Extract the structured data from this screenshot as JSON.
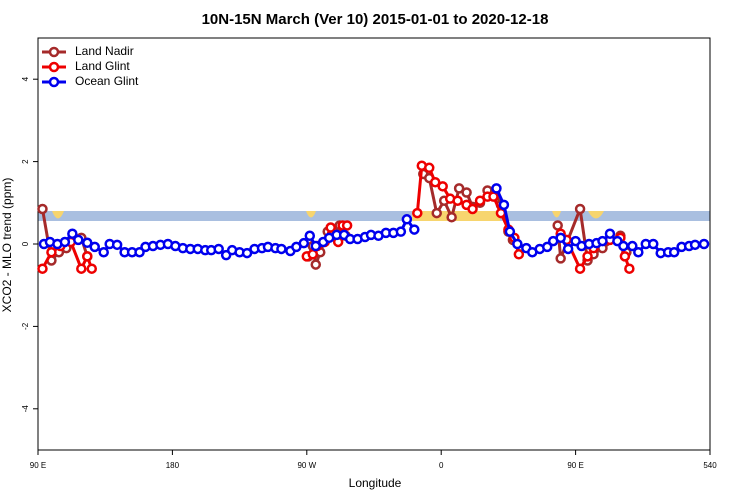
{
  "chart_data": {
    "type": "line",
    "title": "10N-15N March (Ver 10)   2015-01-01 to 2020-12-18",
    "xlabel": "Longitude",
    "ylabel": "XCO2 - MLO trend (ppm)",
    "xlim": [
      90,
      540
    ],
    "xticks": [
      {
        "value": 90,
        "label": "90 E"
      },
      180,
      {
        "value": 270,
        "label": "90 W"
      },
      {
        "value": 360,
        "label": "0"
      },
      {
        "value": 450,
        "label": "90 E"
      },
      540
    ],
    "ylim": [
      -5,
      5
    ],
    "yticks": [
      -4,
      -2,
      0,
      2,
      4
    ],
    "legend": "top-left",
    "series": [
      {
        "name": "Land Nadir",
        "color": "#a52a2a",
        "x": [
          93,
          99,
          104,
          109,
          119,
          123,
          200,
          271,
          274,
          276,
          279,
          284,
          288,
          292,
          296,
          320,
          348,
          352,
          357,
          362,
          367,
          372,
          377,
          381,
          386,
          391,
          396,
          400,
          405,
          408,
          420,
          438,
          440,
          453,
          458,
          462,
          468,
          480,
          484
        ],
        "values": [
          0.85,
          -0.4,
          -0.2,
          -0.1,
          0.15,
          -0.3,
          null,
          -0.3,
          -0.05,
          -0.5,
          -0.2,
          0.3,
          0.3,
          0.45,
          0.2,
          null,
          1.7,
          1.6,
          0.75,
          1.05,
          0.65,
          1.35,
          1.25,
          0.9,
          1.0,
          1.3,
          1.25,
          0.95,
          0.3,
          0.1,
          null,
          0.45,
          -0.35,
          0.85,
          -0.4,
          -0.25,
          -0.1,
          0.2,
          -0.2
        ]
      },
      {
        "name": "Land Glint",
        "color": "#ee0000",
        "x": [
          93,
          99,
          105,
          112,
          119,
          123,
          126,
          200,
          270,
          274,
          277,
          282,
          286,
          291,
          294,
          297,
          320,
          344,
          347,
          352,
          356,
          361,
          366,
          371,
          377,
          381,
          386,
          391,
          395,
          400,
          405,
          409,
          412,
          425,
          440,
          444,
          453,
          458,
          462,
          473,
          480,
          483,
          486
        ],
        "values": [
          -0.6,
          -0.2,
          -0.05,
          0.05,
          -0.6,
          -0.3,
          -0.6,
          null,
          -0.3,
          -0.25,
          -0.05,
          0.05,
          0.4,
          0.05,
          0.45,
          0.45,
          null,
          0.75,
          1.9,
          1.85,
          1.5,
          1.4,
          1.1,
          1.05,
          0.95,
          0.85,
          1.05,
          1.15,
          1.15,
          0.75,
          0.35,
          0.15,
          -0.25,
          null,
          0.25,
          0.1,
          -0.6,
          -0.3,
          -0.1,
          0.1,
          0.15,
          -0.3,
          -0.6
        ]
      },
      {
        "name": "Ocean Glint",
        "color": "#0000ee",
        "x": [
          94,
          98,
          103,
          108,
          113,
          117,
          123,
          128,
          134,
          138,
          143,
          148,
          153,
          158,
          162,
          167,
          172,
          177,
          182,
          187,
          192,
          197,
          202,
          206,
          211,
          216,
          220,
          225,
          230,
          235,
          240,
          244,
          249,
          253,
          259,
          263,
          268,
          272,
          276,
          281,
          285,
          290,
          295,
          299,
          304,
          309,
          313,
          318,
          323,
          328,
          333,
          337,
          342,
          370,
          397,
          402,
          406,
          411,
          417,
          421,
          426,
          431,
          435,
          440,
          445,
          450,
          454,
          459,
          464,
          468,
          473,
          478,
          482,
          488,
          492,
          497,
          502,
          507,
          512,
          516,
          521,
          526,
          530,
          536
        ],
        "values": [
          0,
          0.05,
          0,
          0.05,
          0.25,
          0.1,
          0.03,
          -0.07,
          -0.2,
          0,
          -0.02,
          -0.2,
          -0.2,
          -0.2,
          -0.07,
          -0.05,
          -0.02,
          0,
          -0.05,
          -0.1,
          -0.12,
          -0.12,
          -0.15,
          -0.15,
          -0.12,
          -0.27,
          -0.15,
          -0.2,
          -0.22,
          -0.12,
          -0.1,
          -0.07,
          -0.1,
          -0.12,
          -0.17,
          -0.07,
          0.02,
          0.2,
          -0.05,
          0.05,
          0.15,
          0.22,
          0.22,
          0.12,
          0.12,
          0.17,
          0.22,
          0.2,
          0.27,
          0.27,
          0.3,
          0.6,
          0.35,
          null,
          1.35,
          0.95,
          0.3,
          0,
          -0.1,
          -0.2,
          -0.12,
          -0.07,
          0.07,
          0.15,
          -0.12,
          0.07,
          -0.05,
          0,
          0.02,
          0.07,
          0.25,
          0.07,
          -0.05,
          -0.05,
          -0.2,
          0,
          0,
          -0.22,
          -0.2,
          -0.2,
          -0.07,
          -0.05,
          -0.02,
          0
        ]
      }
    ]
  }
}
